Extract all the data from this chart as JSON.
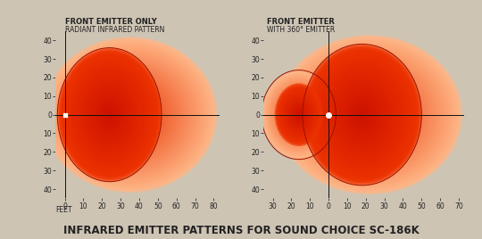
{
  "bg_color": "#cdc4b4",
  "title": "INFRARED EMITTER PATTERNS FOR SOUND CHOICE SC-186K",
  "left_title_line1": "FRONT EMITTER ONLY",
  "left_title_line2": "RADIANT INFRARED PATTERN",
  "right_title_line1": "FRONT EMITTER",
  "right_title_line2": "WITH 360° EMITTER",
  "left_xlabel_prefix": "FEET",
  "axis_color": "#111111",
  "text_color": "#222222",
  "title_fontsize": 8.5,
  "label_fontsize": 6.0,
  "tick_fontsize": 5.5,
  "color_outer": "#ffb080",
  "color_mid": "#ff4400",
  "color_inner": "#dd1100",
  "color_core": "#cc0000"
}
